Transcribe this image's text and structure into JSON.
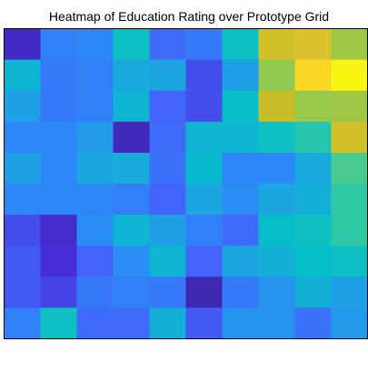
{
  "chart_data": {
    "type": "heatmap",
    "title": "Heatmap of Education Rating over Prototype Grid",
    "xlabel": "",
    "ylabel": "",
    "rows": 10,
    "cols": 10,
    "colormap": "parula",
    "axis_ticks": false,
    "grid": false,
    "values": [
      [
        0.06,
        0.28,
        0.3,
        0.52,
        0.22,
        0.26,
        0.52,
        0.82,
        0.84,
        0.74
      ],
      [
        0.46,
        0.26,
        0.28,
        0.42,
        0.4,
        0.16,
        0.38,
        0.72,
        0.93,
        0.99
      ],
      [
        0.38,
        0.26,
        0.28,
        0.46,
        0.2,
        0.16,
        0.5,
        0.8,
        0.73,
        0.74
      ],
      [
        0.3,
        0.3,
        0.36,
        0.04,
        0.22,
        0.46,
        0.46,
        0.52,
        0.58,
        0.82
      ],
      [
        0.38,
        0.3,
        0.4,
        0.42,
        0.24,
        0.48,
        0.3,
        0.3,
        0.42,
        0.63
      ],
      [
        0.3,
        0.3,
        0.3,
        0.28,
        0.2,
        0.4,
        0.32,
        0.4,
        0.44,
        0.6
      ],
      [
        0.16,
        0.08,
        0.32,
        0.46,
        0.38,
        0.28,
        0.22,
        0.5,
        0.52,
        0.6
      ],
      [
        0.18,
        0.1,
        0.2,
        0.32,
        0.46,
        0.2,
        0.4,
        0.44,
        0.5,
        0.52
      ],
      [
        0.18,
        0.14,
        0.26,
        0.28,
        0.26,
        0.02,
        0.26,
        0.34,
        0.44,
        0.38
      ],
      [
        0.28,
        0.52,
        0.22,
        0.22,
        0.44,
        0.18,
        0.34,
        0.34,
        0.24,
        0.36
      ]
    ]
  }
}
